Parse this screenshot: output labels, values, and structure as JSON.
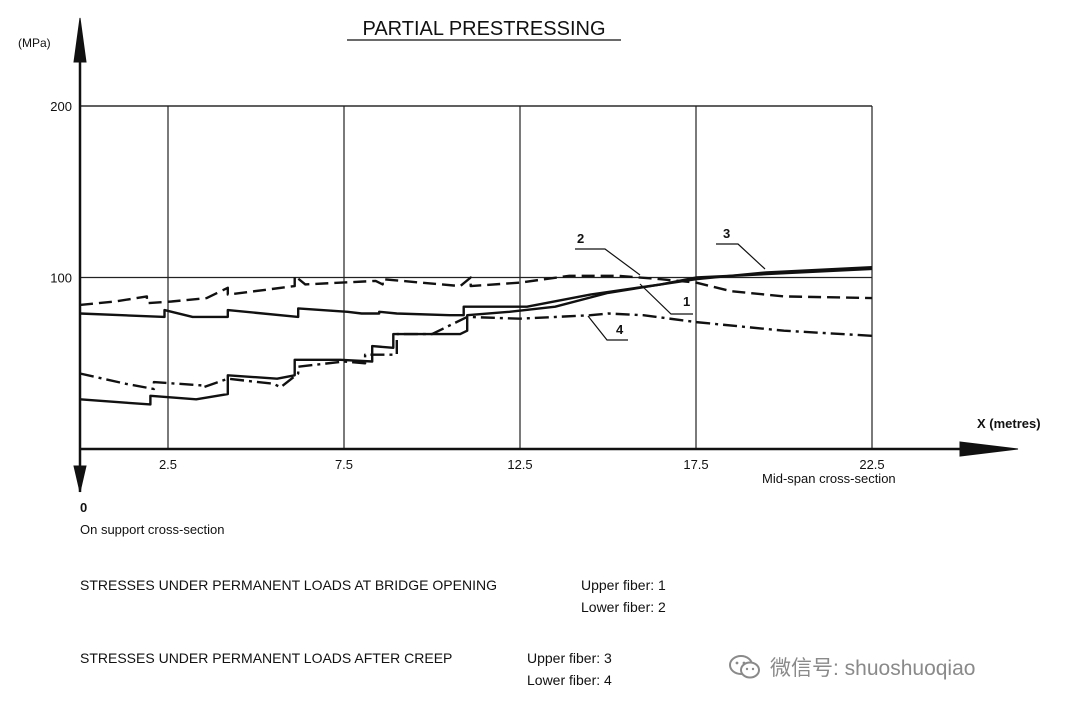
{
  "chart_data": {
    "type": "line",
    "title": "PARTIAL PRESTRESSING",
    "ylabel": "(MPa)",
    "xlabel": "X (metres)",
    "x_ticks": [
      "2.5",
      "7.5",
      "12.5",
      "17.5",
      "22.5"
    ],
    "y_ticks": [
      "100",
      "200"
    ],
    "origin_label": "0",
    "origin_caption": "On support cross-section",
    "end_caption": "Mid-span cross-section",
    "xlim": [
      0,
      22.5
    ],
    "ylim": [
      0,
      200
    ],
    "grid": true,
    "series": [
      {
        "name": "1",
        "style": "solid",
        "x": [
          0,
          1.2,
          2.4,
          2.4,
          3.2,
          4.2,
          4.2,
          6.2,
          6.2,
          7.6,
          8.0,
          8.5,
          8.5,
          9.0,
          10.5,
          10.9,
          10.9,
          12.7,
          14.5,
          16.5,
          17.5,
          19.5,
          22.5
        ],
        "y": [
          79,
          78,
          77,
          81,
          77,
          77,
          81,
          77,
          82,
          80,
          79,
          79,
          80,
          79,
          78,
          78,
          83,
          83,
          90,
          96,
          100,
          102,
          105
        ]
      },
      {
        "name": "2",
        "style": "dashed",
        "x": [
          0,
          1.0,
          1.9,
          1.9,
          2.6,
          3.6,
          4.2,
          4.2,
          6.1,
          6.1,
          6.4,
          6.4,
          8.4,
          8.6,
          8.6,
          10.8,
          11.1,
          11.1,
          12.5,
          13.9,
          15.3,
          16.5,
          17.5,
          18.5,
          20.0,
          22.5
        ],
        "y": [
          84,
          86,
          89,
          85,
          86,
          88,
          94,
          90,
          95,
          101,
          96,
          96,
          98,
          96,
          99,
          95,
          100,
          95,
          97,
          101,
          101,
          99,
          97,
          92,
          89,
          88
        ]
      },
      {
        "name": "3",
        "style": "solid",
        "x": [
          0,
          1.3,
          2.0,
          2.0,
          3.3,
          4.2,
          4.2,
          5.6,
          6.1,
          6.1,
          7.4,
          8.3,
          8.3,
          8.9,
          8.9,
          10.8,
          11.0,
          11.0,
          12.2,
          13.5,
          15.0,
          16.5,
          17.5,
          19.5,
          22.5
        ],
        "y": [
          29,
          27,
          26,
          31,
          29,
          32,
          43,
          41,
          43,
          52,
          52,
          51,
          60,
          59,
          67,
          67,
          69,
          78,
          80,
          83,
          91,
          96,
          99,
          103,
          106
        ]
      },
      {
        "name": "4",
        "style": "dashdot",
        "x": [
          0,
          1.3,
          2.1,
          2.1,
          3.5,
          3.5,
          4.2,
          5.5,
          5.7,
          6.2,
          6.2,
          7.5,
          8.1,
          8.1,
          9.0,
          9.0,
          10.0,
          10.3,
          10.3,
          11.0,
          12.5,
          14.5,
          15.0,
          16.0,
          17.5,
          20.0,
          22.5
        ],
        "y": [
          44,
          38,
          35,
          39,
          37,
          36,
          41,
          38,
          36,
          44,
          48,
          51,
          50,
          55,
          55,
          67,
          67,
          70,
          70,
          77,
          76,
          78,
          79,
          78,
          74,
          69,
          66
        ]
      }
    ]
  },
  "notes": {
    "line1_main": "STRESSES UNDER PERMANENT LOADS AT BRIDGE OPENING",
    "line1_upper": "Upper fiber: 1",
    "line1_lower": "Lower fiber: 2",
    "line2_main": "STRESSES UNDER PERMANENT LOADS AFTER CREEP",
    "line2_upper": "Upper fiber: 3",
    "line2_lower": "Lower fiber: 4"
  },
  "watermark": {
    "text": "微信号: shuoshuoqiao",
    "icon": "wechat-icon"
  }
}
